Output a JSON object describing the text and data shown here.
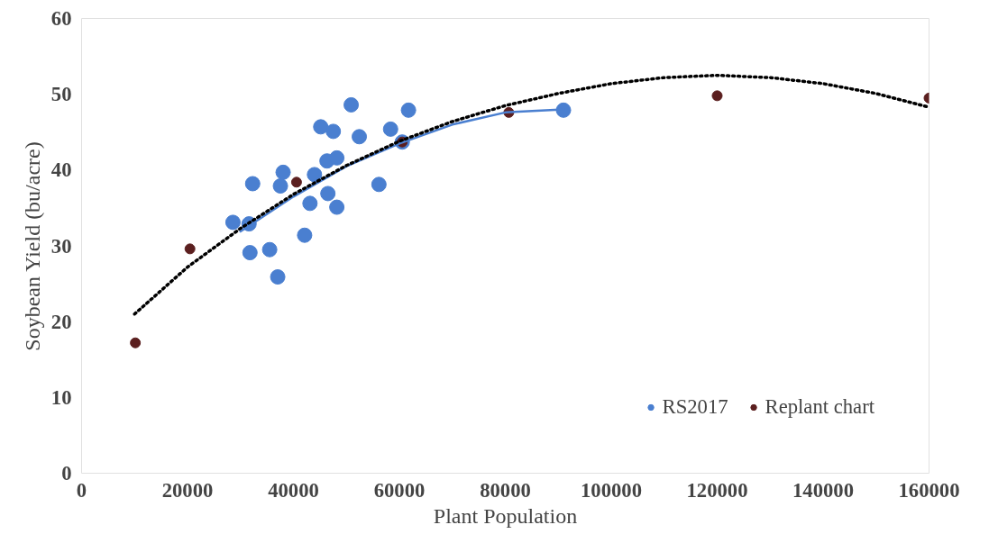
{
  "chart_data": {
    "type": "scatter",
    "xlabel": "Plant Population",
    "ylabel": "Soybean Yield (bu/acre)",
    "xlim": [
      0,
      160000
    ],
    "ylim": [
      0,
      60
    ],
    "xticks": [
      0,
      20000,
      40000,
      60000,
      80000,
      100000,
      120000,
      140000,
      160000
    ],
    "yticks": [
      0,
      10,
      20,
      30,
      40,
      50,
      60
    ],
    "grid": false,
    "legend": "bottom right",
    "marker": "circle",
    "series": [
      {
        "name": "RS2017",
        "color": "#4a7fd0",
        "x": [
          28580,
          31620,
          31790,
          32300,
          35510,
          37030,
          37540,
          38050,
          43120,
          43970,
          42110,
          45150,
          46330,
          48190,
          46500,
          48190,
          47520,
          50900,
          52430,
          56140,
          58340,
          61720,
          60540,
          90980
        ],
        "values": [
          33.1,
          32.9,
          29.1,
          38.2,
          29.5,
          25.9,
          37.9,
          39.7,
          35.6,
          39.4,
          31.4,
          45.7,
          41.2,
          41.6,
          36.9,
          35.1,
          45.1,
          48.6,
          44.4,
          38.1,
          45.4,
          47.9,
          43.7,
          47.9
        ]
      },
      {
        "name": "Replant chart",
        "color": "#5b1f1f",
        "x": [
          10150,
          20460,
          40580,
          60540,
          80660,
          120000,
          160000
        ],
        "values": [
          17.2,
          29.6,
          38.4,
          43.7,
          47.6,
          49.8,
          49.5
        ]
      },
      {
        "color": "#4a7fd0",
        "type": "line",
        "marker": "none",
        "line_style": "solid",
        "x": [
          30000,
          40000,
          50000,
          60000,
          70000,
          80000,
          91000
        ],
        "values": [
          31.9,
          36.5,
          40.5,
          43.5,
          46.0,
          47.6,
          48.0
        ]
      },
      {
        "color": "#000000",
        "type": "line",
        "marker": "none",
        "line_style": "dotted",
        "x": [
          10000,
          20000,
          30000,
          40000,
          50000,
          60000,
          70000,
          80000,
          90000,
          100000,
          110000,
          120000,
          130000,
          140000,
          150000,
          160000
        ],
        "values": [
          21.0,
          27.2,
          32.3,
          36.8,
          40.6,
          43.8,
          46.4,
          48.5,
          50.1,
          51.4,
          52.2,
          52.5,
          52.2,
          51.4,
          50.1,
          48.3
        ]
      }
    ]
  }
}
